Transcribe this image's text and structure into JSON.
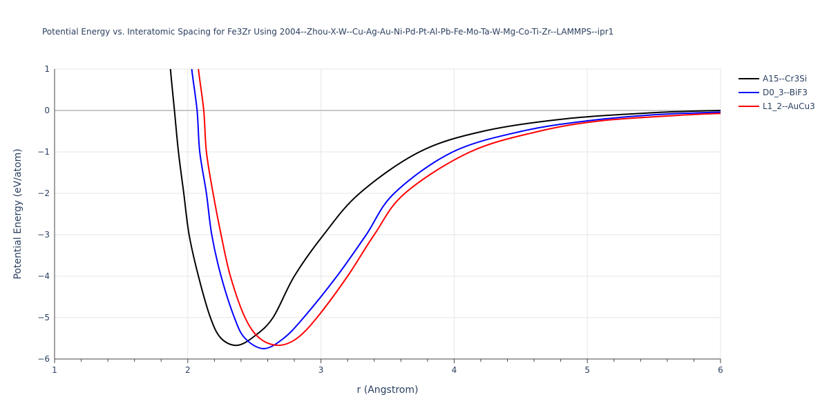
{
  "chart_data": {
    "type": "line",
    "title": "Potential Energy vs. Interatomic Spacing for Fe3Zr Using 2004--Zhou-X-W--Cu-Ag-Au-Ni-Pd-Pt-Al-Pb-Fe-Mo-Ta-W-Mg-Co-Ti-Zr--LAMMPS--ipr1",
    "xlabel": "r (Angstrom)",
    "ylabel": "Potential Energy (eV/atom)",
    "xlim": [
      1,
      6
    ],
    "ylim": [
      -6,
      1
    ],
    "xticks": [
      "1",
      "2",
      "3",
      "4",
      "5",
      "6"
    ],
    "yticks": [
      "1",
      "0",
      "−1",
      "−2",
      "−3",
      "−4",
      "−5",
      "−6"
    ],
    "grid": true,
    "legend_position": "top-right",
    "series": [
      {
        "name": "A15--Cr3Si",
        "color": "#000000",
        "x": [
          1.87,
          1.9,
          1.93,
          1.97,
          2.01,
          2.08,
          2.17,
          2.25,
          2.37,
          2.5,
          2.64,
          2.8,
          3.02,
          3.29,
          3.74,
          4.22,
          4.84,
          5.52,
          6.0
        ],
        "y": [
          1,
          0,
          -1,
          -2,
          -3,
          -4,
          -5,
          -5.5,
          -5.67,
          -5.45,
          -5,
          -4,
          -3,
          -2,
          -1,
          -0.5,
          -0.2,
          -0.05,
          0
        ]
      },
      {
        "name": "D0_3--BiF3",
        "color": "#0000ff",
        "x": [
          2.03,
          2.07,
          2.09,
          2.14,
          2.18,
          2.25,
          2.35,
          2.43,
          2.57,
          2.72,
          2.87,
          3.12,
          3.34,
          3.55,
          3.99,
          4.51,
          5.0,
          5.52,
          6.0
        ],
        "y": [
          1,
          0,
          -1,
          -2,
          -3,
          -4,
          -5,
          -5.5,
          -5.75,
          -5.5,
          -5,
          -4,
          -3,
          -2,
          -1,
          -0.5,
          -0.25,
          -0.1,
          -0.04
        ]
      },
      {
        "name": "L1_2--AuCu3",
        "color": "#ff0000",
        "x": [
          2.08,
          2.12,
          2.14,
          2.19,
          2.25,
          2.32,
          2.43,
          2.54,
          2.68,
          2.82,
          2.97,
          3.2,
          3.4,
          3.63,
          4.12,
          4.64,
          5.1,
          5.67,
          6.0
        ],
        "y": [
          1,
          0,
          -1,
          -2,
          -3,
          -4,
          -5,
          -5.5,
          -5.67,
          -5.5,
          -5,
          -4,
          -3,
          -2,
          -1,
          -0.5,
          -0.25,
          -0.12,
          -0.07
        ]
      }
    ]
  }
}
